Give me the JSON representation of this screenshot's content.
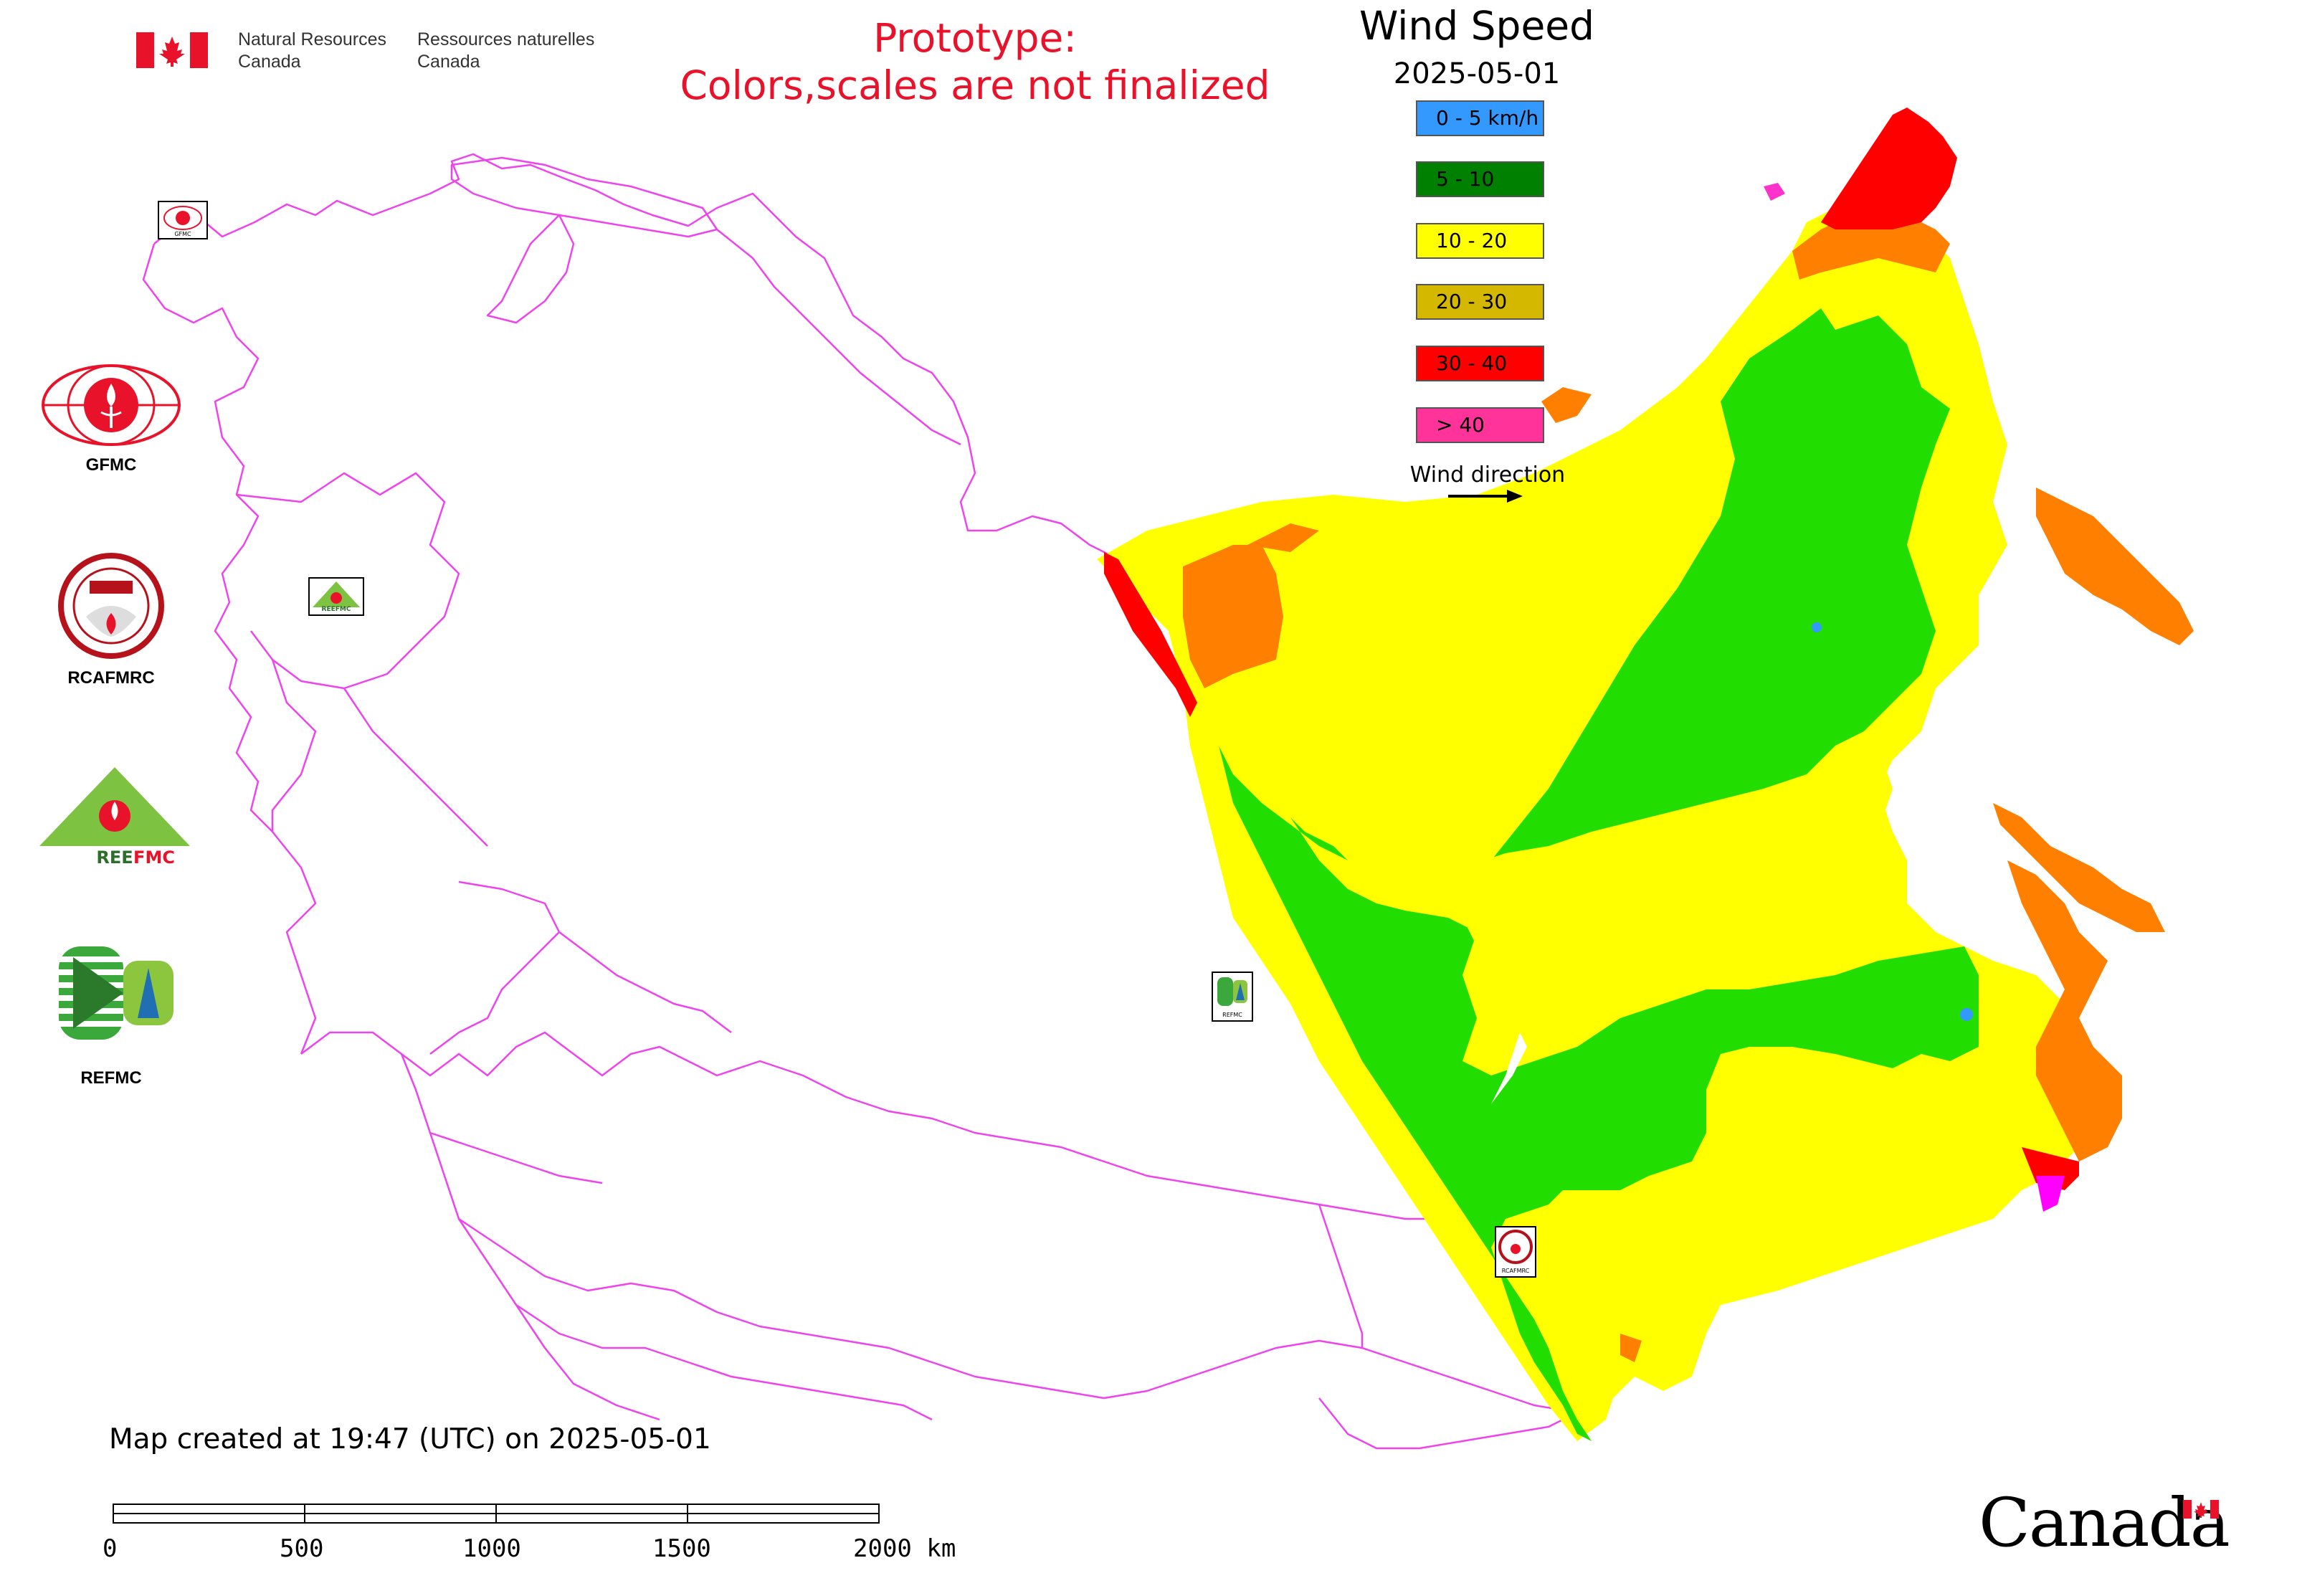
{
  "header": {
    "department_en_line1": "Natural Resources",
    "department_en_line2": "Canada",
    "department_fr_line1": "Ressources naturelles",
    "department_fr_line2": "Canada",
    "prototype_line1": "Prototype:",
    "prototype_line2": "Colors,scales are not finalized"
  },
  "legend": {
    "title": "Wind Speed",
    "date": "2025-05-01",
    "items": [
      {
        "label": "0 - 5 km/h",
        "color": "#3399ff"
      },
      {
        "label": "5 - 10",
        "color": "#008000"
      },
      {
        "label": "10 - 20",
        "color": "#ffff00"
      },
      {
        "label": "20 - 30",
        "color": "#d4b800"
      },
      {
        "label": "30 - 40",
        "color": "#ff0000"
      },
      {
        "label": "> 40",
        "color": "#ff3399"
      }
    ],
    "wind_direction_label": "Wind direction"
  },
  "logos": [
    {
      "label": "GFMC"
    },
    {
      "label": "RCAFMRC"
    },
    {
      "label": "REEFMC"
    },
    {
      "label": "REFMC"
    }
  ],
  "map_markers": {
    "gfmc_small": "GFMC",
    "reefmc_small": "REEFMC",
    "refmc_small": "REFMC",
    "rcafmrc_small": "RCAFMRC"
  },
  "footer": {
    "created_text": "Map created at 19:47 (UTC) on 2025-05-01",
    "scale_labels": [
      "0",
      "500",
      "1000",
      "1500",
      "2000 km"
    ],
    "canada_wordmark": "Canada"
  },
  "colors": {
    "boundary": "#ee44ee",
    "zone_green": "#22dd00",
    "zone_yellow": "#ffff00",
    "zone_orange": "#ff8000",
    "zone_red": "#ff0000",
    "zone_magenta": "#ff00ff",
    "prototype_text": "#e8132a"
  }
}
